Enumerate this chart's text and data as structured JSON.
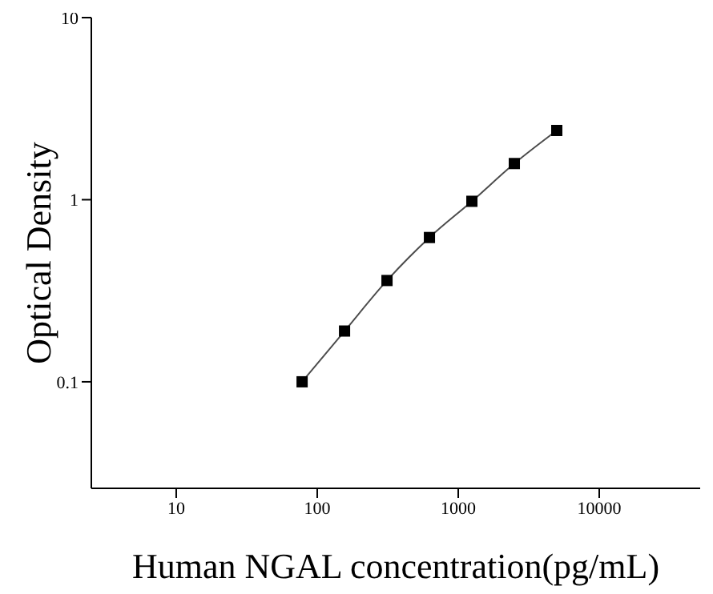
{
  "chart_data": {
    "type": "line",
    "xlabel": "Human NGAL concentration(pg/mL)",
    "ylabel": "Optical Density",
    "x": [
      78.125,
      156.25,
      312.5,
      625,
      1250,
      2500,
      5000
    ],
    "series": [
      {
        "color": "#000000",
        "values": [
          0.1,
          0.19,
          0.36,
          0.62,
          0.98,
          1.58,
          2.4
        ]
      }
    ],
    "log": "xy",
    "xlim": [
      2.5,
      52000
    ],
    "xticks": [
      10,
      100,
      1000,
      10000
    ],
    "ylim": [
      0.026,
      10
    ],
    "yticks": [
      0.1,
      1,
      10
    ],
    "marker": "square",
    "line_style": "solid",
    "grid": false,
    "legend": false
  }
}
